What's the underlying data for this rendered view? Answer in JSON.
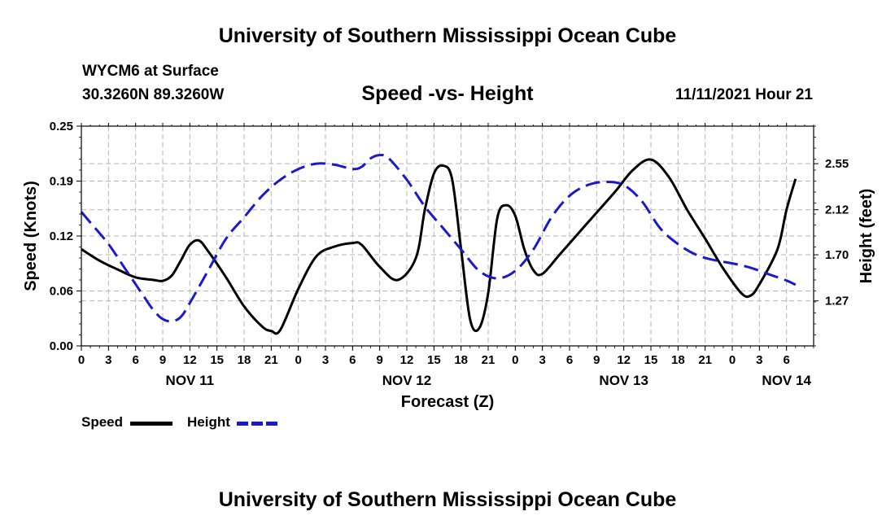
{
  "header": {
    "title": "University of Southern Mississippi Ocean Cube",
    "station": "WYCM6 at Surface",
    "coords": "30.3260N  89.3260W",
    "subtitle": "Speed -vs- Height",
    "datetime": "11/11/2021 Hour 21"
  },
  "footer": {
    "title": "University of Southern Mississippi Ocean Cube"
  },
  "legend": {
    "speed_label": "Speed",
    "height_label": "Height"
  },
  "colors": {
    "speed": "#000000",
    "height": "#1a1acc",
    "grid": "#b4b4b4"
  },
  "chart_data": {
    "type": "line",
    "title": "Speed -vs- Height",
    "xlabel": "Forecast (Z)",
    "ylabel": "Speed (Knots)",
    "y2label": "Height (feet)",
    "x_range_hours": [
      0,
      81
    ],
    "x_ticks": [
      {
        "h": 0,
        "label": "0"
      },
      {
        "h": 3,
        "label": "3"
      },
      {
        "h": 6,
        "label": "6"
      },
      {
        "h": 9,
        "label": "9"
      },
      {
        "h": 12,
        "label": "12"
      },
      {
        "h": 15,
        "label": "15"
      },
      {
        "h": 18,
        "label": "18"
      },
      {
        "h": 21,
        "label": "21"
      },
      {
        "h": 24,
        "label": "0"
      },
      {
        "h": 27,
        "label": "3"
      },
      {
        "h": 30,
        "label": "6"
      },
      {
        "h": 33,
        "label": "9"
      },
      {
        "h": 36,
        "label": "12"
      },
      {
        "h": 39,
        "label": "15"
      },
      {
        "h": 42,
        "label": "18"
      },
      {
        "h": 45,
        "label": "21"
      },
      {
        "h": 48,
        "label": "0"
      },
      {
        "h": 51,
        "label": "3"
      },
      {
        "h": 54,
        "label": "6"
      },
      {
        "h": 57,
        "label": "9"
      },
      {
        "h": 60,
        "label": "12"
      },
      {
        "h": 63,
        "label": "15"
      },
      {
        "h": 66,
        "label": "18"
      },
      {
        "h": 69,
        "label": "21"
      },
      {
        "h": 72,
        "label": "0"
      },
      {
        "h": 75,
        "label": "3"
      },
      {
        "h": 78,
        "label": "6"
      }
    ],
    "day_labels": [
      {
        "h": 12,
        "label": "NOV 11"
      },
      {
        "h": 36,
        "label": "NOV 12"
      },
      {
        "h": 60,
        "label": "NOV 13"
      },
      {
        "h": 78,
        "label": "NOV 14"
      }
    ],
    "ylim": [
      0,
      0.25
    ],
    "y_ticks": [
      {
        "v": 0.0,
        "label": "0.00"
      },
      {
        "v": 0.0625,
        "label": "0.06"
      },
      {
        "v": 0.125,
        "label": "0.12"
      },
      {
        "v": 0.1875,
        "label": "0.19"
      },
      {
        "v": 0.25,
        "label": "0.25"
      }
    ],
    "y2lim": [
      0.85,
      2.9
    ],
    "y2_ticks": [
      {
        "v": 1.27,
        "label": "1.27"
      },
      {
        "v": 1.7,
        "label": "1.70"
      },
      {
        "v": 2.12,
        "label": "2.12"
      },
      {
        "v": 2.55,
        "label": "2.55"
      }
    ],
    "series": [
      {
        "name": "Speed",
        "axis": "left",
        "style": "solid",
        "points": [
          [
            0,
            0.11
          ],
          [
            2,
            0.097
          ],
          [
            4,
            0.087
          ],
          [
            6,
            0.078
          ],
          [
            8,
            0.075
          ],
          [
            9,
            0.074
          ],
          [
            10,
            0.08
          ],
          [
            11,
            0.097
          ],
          [
            12,
            0.115
          ],
          [
            13,
            0.12
          ],
          [
            14,
            0.108
          ],
          [
            16,
            0.078
          ],
          [
            18,
            0.045
          ],
          [
            20,
            0.022
          ],
          [
            21,
            0.017
          ],
          [
            22,
            0.018
          ],
          [
            24,
            0.065
          ],
          [
            26,
            0.102
          ],
          [
            28,
            0.113
          ],
          [
            30,
            0.117
          ],
          [
            31,
            0.115
          ],
          [
            33,
            0.09
          ],
          [
            35,
            0.075
          ],
          [
            37,
            0.1
          ],
          [
            38,
            0.155
          ],
          [
            39,
            0.196
          ],
          [
            40,
            0.205
          ],
          [
            41,
            0.19
          ],
          [
            42,
            0.11
          ],
          [
            43,
            0.03
          ],
          [
            44,
            0.02
          ],
          [
            45,
            0.06
          ],
          [
            46,
            0.145
          ],
          [
            47,
            0.16
          ],
          [
            48,
            0.148
          ],
          [
            49,
            0.11
          ],
          [
            50,
            0.086
          ],
          [
            51,
            0.082
          ],
          [
            53,
            0.105
          ],
          [
            56,
            0.14
          ],
          [
            59,
            0.175
          ],
          [
            61,
            0.2
          ],
          [
            63,
            0.212
          ],
          [
            65,
            0.192
          ],
          [
            67,
            0.155
          ],
          [
            69,
            0.122
          ],
          [
            71,
            0.088
          ],
          [
            73,
            0.06
          ],
          [
            74,
            0.057
          ],
          [
            75,
            0.07
          ],
          [
            77,
            0.11
          ],
          [
            78,
            0.155
          ],
          [
            79,
            0.19
          ]
        ]
      },
      {
        "name": "Height",
        "axis": "right",
        "style": "dashed",
        "points": [
          [
            0,
            2.1
          ],
          [
            1,
            2.0
          ],
          [
            3,
            1.8
          ],
          [
            5,
            1.55
          ],
          [
            7,
            1.3
          ],
          [
            8,
            1.18
          ],
          [
            9,
            1.1
          ],
          [
            10,
            1.08
          ],
          [
            11,
            1.12
          ],
          [
            12,
            1.25
          ],
          [
            14,
            1.55
          ],
          [
            16,
            1.85
          ],
          [
            18,
            2.05
          ],
          [
            20,
            2.25
          ],
          [
            22,
            2.4
          ],
          [
            24,
            2.5
          ],
          [
            26,
            2.55
          ],
          [
            28,
            2.54
          ],
          [
            30,
            2.5
          ],
          [
            31,
            2.52
          ],
          [
            32,
            2.6
          ],
          [
            33,
            2.63
          ],
          [
            34,
            2.6
          ],
          [
            36,
            2.4
          ],
          [
            38,
            2.15
          ],
          [
            40,
            1.95
          ],
          [
            42,
            1.75
          ],
          [
            44,
            1.55
          ],
          [
            46,
            1.48
          ],
          [
            48,
            1.55
          ],
          [
            50,
            1.75
          ],
          [
            52,
            2.05
          ],
          [
            54,
            2.25
          ],
          [
            56,
            2.35
          ],
          [
            58,
            2.38
          ],
          [
            60,
            2.35
          ],
          [
            62,
            2.2
          ],
          [
            64,
            1.95
          ],
          [
            66,
            1.8
          ],
          [
            68,
            1.7
          ],
          [
            70,
            1.65
          ],
          [
            72,
            1.62
          ],
          [
            74,
            1.58
          ],
          [
            76,
            1.52
          ],
          [
            78,
            1.46
          ],
          [
            79,
            1.42
          ]
        ]
      }
    ]
  }
}
